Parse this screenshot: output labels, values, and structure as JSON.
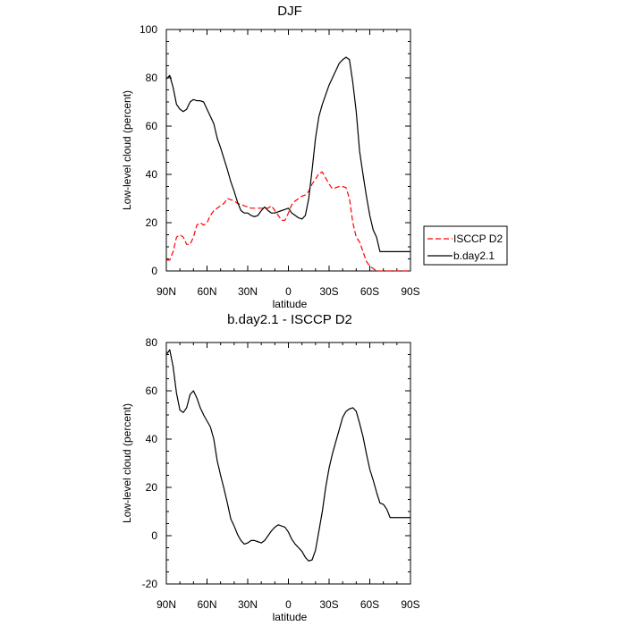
{
  "chart_data": [
    {
      "type": "line",
      "title": "DJF",
      "xlabel": "latitude",
      "ylabel": "Low-level cloud (percent)",
      "x": [
        90,
        87.5,
        85,
        82.5,
        80,
        77.5,
        75,
        72.5,
        70,
        67.5,
        65,
        62.5,
        60,
        57.5,
        55,
        52.5,
        50,
        47.5,
        45,
        42.5,
        40,
        37.5,
        35,
        32.5,
        30,
        27.5,
        25,
        22.5,
        20,
        17.5,
        15,
        12.5,
        10,
        7.5,
        5,
        2.5,
        0,
        -2.5,
        -5,
        -7.5,
        -10,
        -12.5,
        -15,
        -17.5,
        -20,
        -22.5,
        -25,
        -27.5,
        -30,
        -32.5,
        -35,
        -37.5,
        -40,
        -42.5,
        -45,
        -47.5,
        -50,
        -52.5,
        -55,
        -57.5,
        -60,
        -62.5,
        -65,
        -67.5,
        -70,
        -72.5,
        -75,
        -77.5,
        -80,
        -82.5,
        -85,
        -87.5,
        -90
      ],
      "xlim": [
        90,
        -90
      ],
      "ylim": [
        0,
        100
      ],
      "xticks": [
        90,
        60,
        30,
        0,
        -30,
        -60,
        -90
      ],
      "xtick_labels": [
        "90N",
        "60N",
        "30N",
        "0",
        "30S",
        "60S",
        "90S"
      ],
      "yticks": [
        0,
        20,
        40,
        60,
        80,
        100
      ],
      "ytick_labels": [
        "0",
        "20",
        "40",
        "60",
        "80",
        "100"
      ],
      "series": [
        {
          "name": "ISCCP D2",
          "color": "#ff0000",
          "dash": "dashed",
          "values": [
            4.5,
            4.5,
            8,
            14,
            15,
            14,
            11,
            11,
            14,
            19,
            20,
            19,
            20,
            23,
            25,
            26,
            27,
            28,
            30,
            29.5,
            29,
            28,
            27.5,
            27,
            26.5,
            26,
            26,
            26,
            26,
            26,
            26,
            27,
            25,
            23,
            21,
            21,
            24,
            27.5,
            29,
            30,
            31,
            31.5,
            33,
            36,
            38,
            40.5,
            41,
            38.5,
            36,
            34,
            34.5,
            35,
            35,
            34.5,
            30,
            20,
            14,
            12,
            8,
            4,
            2,
            1,
            0,
            0,
            0,
            0,
            0,
            0,
            0,
            0,
            0,
            0,
            0
          ]
        },
        {
          "name": "b.day2.1",
          "color": "#000000",
          "dash": "solid",
          "values": [
            79.5,
            81,
            76,
            69,
            67,
            66,
            67,
            70,
            71,
            70.5,
            70.5,
            70,
            67,
            64,
            61,
            55,
            51,
            46.5,
            42,
            37,
            33,
            28.5,
            25,
            24,
            24,
            23,
            22.5,
            23,
            25,
            26.5,
            25,
            24,
            24,
            24.5,
            25,
            25.5,
            26,
            24,
            23,
            22,
            21.5,
            23,
            30,
            42,
            55,
            64,
            69,
            73,
            77,
            80,
            83,
            86,
            87.5,
            88.5,
            87.5,
            78,
            66,
            49.5,
            40,
            31,
            23,
            17,
            14,
            8,
            8,
            8,
            8,
            8,
            8,
            8,
            8,
            8,
            8
          ]
        }
      ],
      "legend": {
        "position": "right",
        "entries": [
          {
            "label": "ISCCP D2",
            "color": "#ff0000",
            "dash": "dashed"
          },
          {
            "label": "b.day2.1",
            "color": "#000000",
            "dash": "solid"
          }
        ]
      }
    },
    {
      "type": "line",
      "title": "b.day2.1 - ISCCP D2",
      "xlabel": "latitude",
      "ylabel": "Low-level cloud (percent)",
      "x": [
        90,
        87.5,
        85,
        82.5,
        80,
        77.5,
        75,
        72.5,
        70,
        67.5,
        65,
        62.5,
        60,
        57.5,
        55,
        52.5,
        50,
        47.5,
        45,
        42.5,
        40,
        37.5,
        35,
        32.5,
        30,
        27.5,
        25,
        22.5,
        20,
        17.5,
        15,
        12.5,
        10,
        7.5,
        5,
        2.5,
        0,
        -2.5,
        -5,
        -7.5,
        -10,
        -12.5,
        -15,
        -17.5,
        -20,
        -22.5,
        -25,
        -27.5,
        -30,
        -32.5,
        -35,
        -37.5,
        -40,
        -42.5,
        -45,
        -47.5,
        -50,
        -52.5,
        -55,
        -57.5,
        -60,
        -62.5,
        -65,
        -67.5,
        -70,
        -72.5,
        -75,
        -77.5,
        -80,
        -82.5,
        -85,
        -87.5,
        -90
      ],
      "xlim": [
        90,
        -90
      ],
      "ylim": [
        -20,
        80
      ],
      "xticks": [
        90,
        60,
        30,
        0,
        -30,
        -60,
        -90
      ],
      "xtick_labels": [
        "90N",
        "60N",
        "30N",
        "0",
        "30S",
        "60S",
        "90S"
      ],
      "yticks": [
        -20,
        0,
        20,
        40,
        60,
        80
      ],
      "ytick_labels": [
        "-20",
        "0",
        "20",
        "40",
        "60",
        "80"
      ],
      "series": [
        {
          "name": "b.day2.1 - ISCCP D2",
          "color": "#000000",
          "dash": "solid",
          "values": [
            75,
            77,
            70,
            59,
            52,
            51,
            53,
            58.5,
            60,
            57,
            53,
            50,
            47.5,
            45,
            40,
            31,
            25,
            19.5,
            13.5,
            7,
            4,
            0.5,
            -2,
            -3.5,
            -3,
            -2,
            -2,
            -2.5,
            -3,
            -2,
            0,
            2,
            3.5,
            4.5,
            4,
            3.5,
            1.5,
            -1.5,
            -3.5,
            -5,
            -6.5,
            -9,
            -10.5,
            -10,
            -6,
            2,
            10,
            20,
            28,
            34,
            39,
            44,
            49,
            51.5,
            52.5,
            53,
            51.5,
            46.5,
            41,
            34,
            27.5,
            23,
            18,
            13.5,
            13,
            11,
            7.5,
            7.5,
            7.5,
            7.5,
            7.5,
            7.5,
            7.5
          ]
        }
      ]
    }
  ]
}
